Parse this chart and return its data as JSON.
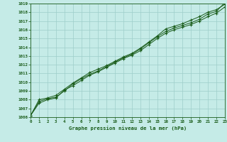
{
  "x": [
    0,
    1,
    2,
    3,
    4,
    5,
    6,
    7,
    8,
    9,
    10,
    11,
    12,
    13,
    14,
    15,
    16,
    17,
    18,
    19,
    20,
    21,
    22,
    23
  ],
  "series1": [
    1006.2,
    1007.8,
    1008.1,
    1008.3,
    1009.0,
    1009.8,
    1010.4,
    1010.9,
    1011.3,
    1011.8,
    1012.3,
    1012.8,
    1013.2,
    1013.8,
    1014.5,
    1015.2,
    1015.8,
    1016.2,
    1016.5,
    1016.8,
    1017.2,
    1017.8,
    1018.1,
    1019.1
  ],
  "series2": [
    1006.2,
    1008.0,
    1008.2,
    1008.5,
    1009.2,
    1009.9,
    1010.5,
    1011.1,
    1011.5,
    1011.9,
    1012.4,
    1012.9,
    1013.3,
    1013.9,
    1014.6,
    1015.3,
    1016.1,
    1016.4,
    1016.7,
    1017.1,
    1017.5,
    1018.0,
    1018.3,
    1018.9
  ],
  "series3": [
    1006.2,
    1007.6,
    1008.0,
    1008.2,
    1009.1,
    1009.6,
    1010.2,
    1010.8,
    1011.2,
    1011.7,
    1012.2,
    1012.7,
    1013.1,
    1013.6,
    1014.3,
    1015.0,
    1015.6,
    1016.0,
    1016.3,
    1016.6,
    1017.0,
    1017.5,
    1017.9,
    1018.6
  ],
  "line_color": "#1a5c1a",
  "marker_color": "#1a5c1a",
  "bg_color": "#c5ebe7",
  "grid_color": "#9ececa",
  "text_color": "#1a5c1a",
  "xlabel": "Graphe pression niveau de la mer (hPa)",
  "ylim_min": 1006,
  "ylim_max": 1019,
  "xlim_min": 0,
  "xlim_max": 23
}
